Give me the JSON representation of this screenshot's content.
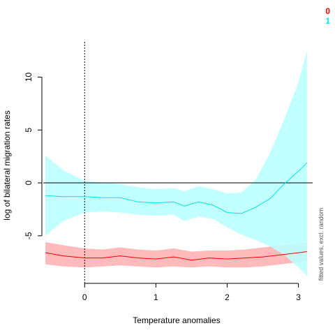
{
  "chart_data": {
    "type": "line",
    "title": "",
    "xlabel": "Temperature anomalies",
    "ylabel": "log of bilateral migration rates",
    "side_note": "fitted values, excl. random",
    "xlim": [
      -0.6,
      3.2
    ],
    "ylim": [
      -9.5,
      13.2
    ],
    "xticks": [
      0,
      1,
      2,
      3
    ],
    "yticks": [
      -5,
      0,
      5,
      10
    ],
    "reference_lines": {
      "hline_y": 0,
      "vline_x": 0,
      "vline_style": "dotted"
    },
    "legend": {
      "placement": "top-right"
    },
    "series": [
      {
        "name": "0",
        "color": "#ff0000",
        "band_color": "#ffbbbb",
        "x": [
          -0.55,
          -0.3,
          0.0,
          0.25,
          0.5,
          0.75,
          1.0,
          1.25,
          1.5,
          1.75,
          2.0,
          2.25,
          2.5,
          2.75,
          3.0,
          3.12
        ],
        "y": [
          -6.6,
          -6.9,
          -7.1,
          -7.1,
          -6.9,
          -7.1,
          -7.2,
          -7.0,
          -7.3,
          -7.1,
          -7.2,
          -7.1,
          -7.0,
          -6.8,
          -6.6,
          -6.5
        ],
        "lower": [
          -7.7,
          -7.9,
          -8.0,
          -7.9,
          -7.8,
          -7.9,
          -8.0,
          -7.9,
          -8.0,
          -7.9,
          -8.0,
          -8.0,
          -7.9,
          -7.7,
          -7.5,
          -7.4
        ],
        "upper": [
          -5.6,
          -5.9,
          -6.2,
          -6.3,
          -6.1,
          -6.3,
          -6.4,
          -6.2,
          -6.5,
          -6.4,
          -6.4,
          -6.3,
          -6.1,
          -5.9,
          -5.7,
          -5.6
        ]
      },
      {
        "name": "1",
        "color": "#00e5e5",
        "band_color": "#bbffff",
        "x": [
          -0.55,
          -0.3,
          0.0,
          0.25,
          0.5,
          0.75,
          1.0,
          1.25,
          1.4,
          1.6,
          1.8,
          2.0,
          2.2,
          2.4,
          2.6,
          2.8,
          3.0,
          3.12
        ],
        "y": [
          -1.2,
          -1.3,
          -1.3,
          -1.4,
          -1.4,
          -1.8,
          -1.9,
          -1.8,
          -2.2,
          -1.8,
          -2.1,
          -2.8,
          -2.9,
          -2.3,
          -1.5,
          -0.1,
          1.1,
          1.9
        ],
        "lower": [
          -5.0,
          -3.6,
          -2.8,
          -2.7,
          -2.8,
          -3.0,
          -3.1,
          -3.0,
          -3.6,
          -3.2,
          -3.4,
          -4.2,
          -4.9,
          -5.4,
          -6.0,
          -6.8,
          -8.0,
          -8.8
        ],
        "upper": [
          2.6,
          1.2,
          0.2,
          0.0,
          -0.1,
          -0.4,
          -0.6,
          -0.5,
          -0.8,
          -0.3,
          -0.6,
          -1.0,
          -0.9,
          0.3,
          2.8,
          6.0,
          9.5,
          12.5
        ]
      }
    ]
  }
}
